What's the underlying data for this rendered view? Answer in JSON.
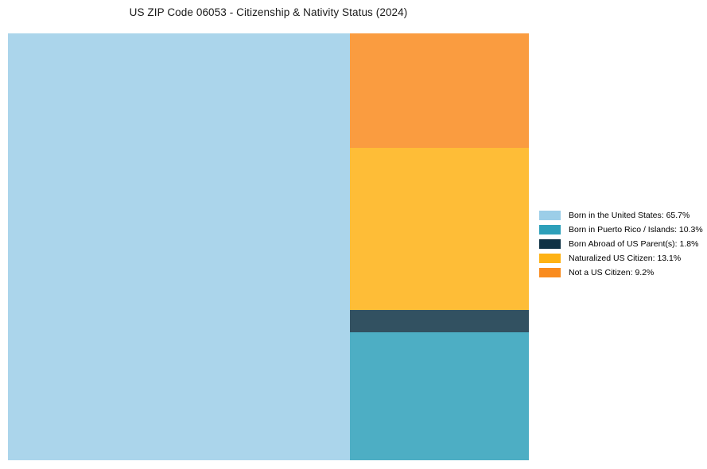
{
  "figure": {
    "background": "#ffffff"
  },
  "chart_data": {
    "type": "treemap",
    "title": "US ZIP Code 06053 - Citizenship & Nativity Status (2024)",
    "unit": "percent",
    "fill_opacity": 0.85,
    "legend_position": "right, vertically centered",
    "layout_hint": "first category fills full-height left column; remaining categories stacked bottom-to-top in right column",
    "series": [
      {
        "name": "Born in the United States",
        "value": 65.7,
        "color": "#9CCEE8",
        "label": "Born in the United States: 65.7%"
      },
      {
        "name": "Born in Puerto Rico / Islands",
        "value": 10.3,
        "color": "#2EA0BA",
        "label": "Born in Puerto Rico / Islands: 10.3%"
      },
      {
        "name": "Born Abroad of US Parent(s)",
        "value": 1.8,
        "color": "#0E3245",
        "label": "Born Abroad of US Parent(s): 1.8%"
      },
      {
        "name": "Naturalized US Citizen",
        "value": 13.1,
        "color": "#FEB214",
        "label": "Naturalized US Citizen: 13.1%"
      },
      {
        "name": "Not a US Citizen",
        "value": 9.2,
        "color": "#F98B1E",
        "label": "Not a US Citizen: 9.2%"
      }
    ]
  }
}
